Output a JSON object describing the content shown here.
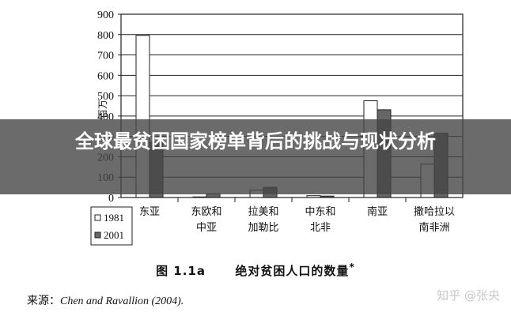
{
  "chart_data": {
    "type": "bar",
    "ylabel": "百万",
    "ylim": [
      0,
      900
    ],
    "yticks": [
      0,
      100,
      200,
      300,
      400,
      500,
      600,
      700,
      800,
      900
    ],
    "grid": true,
    "legend_position": "bottom-left",
    "categories": [
      [
        "东亚"
      ],
      [
        "东欧和",
        "中亚"
      ],
      [
        "拉美和",
        "加勒比"
      ],
      [
        "中东和",
        "北非"
      ],
      [
        "南亚"
      ],
      [
        "撒哈拉以",
        "南非洲"
      ]
    ],
    "series": [
      {
        "name": "1981",
        "color": "#ffffff",
        "values": [
          796,
          3,
          36,
          9,
          475,
          164
        ]
      },
      {
        "name": "2001",
        "color": "#666666",
        "values": [
          271,
          18,
          50,
          7,
          431,
          316
        ]
      }
    ]
  },
  "figure": {
    "caption_label": "图 1.1a",
    "caption_text": "绝对贫困人口的数量",
    "caption_mark": "*",
    "source_prefix": "来源：",
    "source_authors": "Chen and Ravallion (2004)."
  },
  "watermark": "知乎 @张央",
  "overlay_title": "全球最贫困国家榜单背后的挑战与现状分析"
}
